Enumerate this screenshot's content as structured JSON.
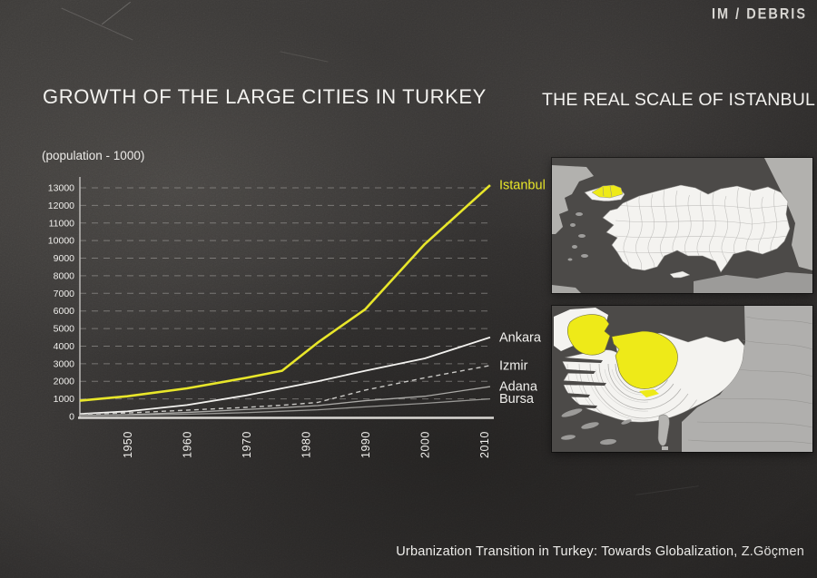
{
  "logo": "IM / DEBRIS",
  "titles": {
    "left": "GROWTH OF THE LARGE CITIES IN TURKEY",
    "right": "THE REAL SCALE OF ISTANBUL"
  },
  "footer": "Urbanization Transition in Turkey: Towards Globalization, Z.Göçmen",
  "colors": {
    "highlight_yellow": "#e8e62a",
    "text": "#f0efec",
    "grid": "#aaa8a5",
    "axis": "#d9d7d3",
    "map_sea": "#4c4a48",
    "map_land": "#f4f3f0",
    "map_neighbor": "#b2b1ae",
    "map_neighbor_dark": "#9c9b99"
  },
  "chart_data": {
    "type": "line",
    "title": "GROWTH OF THE LARGE CITIES IN TURKEY",
    "unit_label": "(population - 1000)",
    "xlabel": "",
    "ylabel": "population (thousands)",
    "x_range": [
      1942,
      2012
    ],
    "x_ticks": [
      1950,
      1960,
      1970,
      1980,
      1990,
      2000,
      2010
    ],
    "ylim": [
      0,
      13000
    ],
    "y_tick_step": 1000,
    "grid": "horizontal-dashed",
    "legend_position": "right-of-line-ends",
    "x": [
      1942,
      1950,
      1960,
      1970,
      1976,
      1982,
      1990,
      2000,
      2011
    ],
    "series": [
      {
        "name": "Istanbul",
        "color": "#e8e62a",
        "label_color": "#e8e62a",
        "style": "solid",
        "width": 2.6,
        "values": [
          900,
          1150,
          1600,
          2200,
          2600,
          4200,
          6100,
          9800,
          13150
        ]
      },
      {
        "name": "Ankara",
        "color": "#f3f2ef",
        "label_color": "#f3f2ef",
        "style": "solid",
        "width": 1.8,
        "values": [
          150,
          290,
          650,
          1200,
          1600,
          2000,
          2600,
          3300,
          4500
        ]
      },
      {
        "name": "Izmir",
        "color": "#c9c8c5",
        "label_color": "#f0efec",
        "style": "dashed",
        "width": 1.4,
        "values": [
          130,
          200,
          360,
          520,
          640,
          800,
          1500,
          2200,
          2900
        ]
      },
      {
        "name": "Adana",
        "color": "#aaa9a6",
        "label_color": "#f0efec",
        "style": "solid",
        "width": 1.3,
        "values": [
          60,
          100,
          230,
          400,
          500,
          620,
          900,
          1150,
          1700
        ]
      },
      {
        "name": "Bursa",
        "color": "#989794",
        "label_color": "#f0efec",
        "style": "solid",
        "width": 1.3,
        "values": [
          40,
          70,
          130,
          220,
          300,
          380,
          550,
          750,
          1000
        ]
      }
    ]
  }
}
